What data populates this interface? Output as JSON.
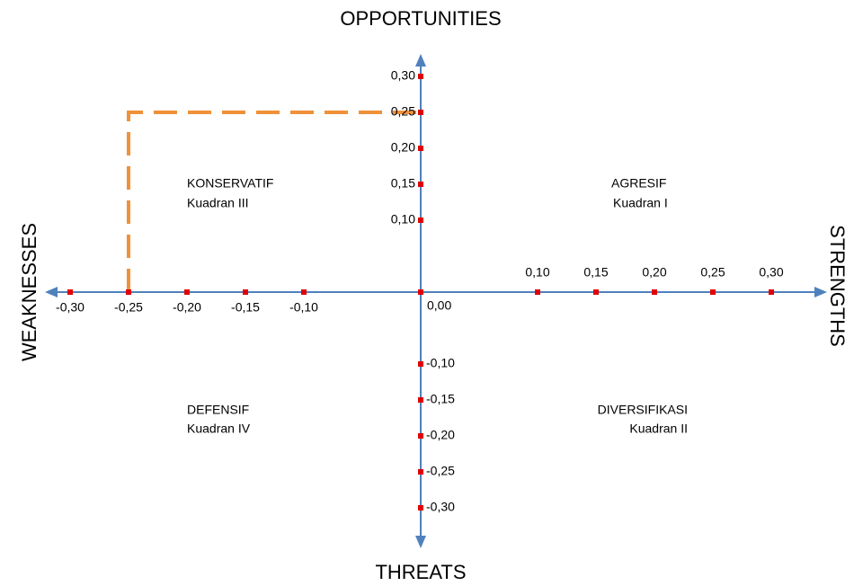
{
  "chart_data": {
    "type": "scatter",
    "axis_labels": {
      "top": "OPPORTUNITIES",
      "bottom": "THREATS",
      "left": "WEAKNESSES",
      "right": "STRENGTHS"
    },
    "quadrants": [
      {
        "name": "AGRESIF",
        "label": "Kuadran I"
      },
      {
        "name": "DIVERSIFIKASI",
        "label": "Kuadran II"
      },
      {
        "name": "KONSERVATIF",
        "label": "Kuadran III"
      },
      {
        "name": "DEFENSIF",
        "label": "Kuadran IV"
      }
    ],
    "x": [
      -0.25
    ],
    "values": [
      0.25
    ],
    "color": "#f0913a",
    "xlim": [
      -0.33,
      0.33
    ],
    "ylim": [
      -0.33,
      0.33
    ],
    "xticks": [
      {
        "value": -0.3,
        "label": "-0,30"
      },
      {
        "value": -0.25,
        "label": "-0,25"
      },
      {
        "value": -0.2,
        "label": "-0,20"
      },
      {
        "value": -0.15,
        "label": "-0,15"
      },
      {
        "value": -0.1,
        "label": "-0,10"
      },
      {
        "value": 0,
        "label": "0,00"
      },
      {
        "value": 0.1,
        "label": "0,10"
      },
      {
        "value": 0.15,
        "label": "0,15"
      },
      {
        "value": 0.2,
        "label": "0,20"
      },
      {
        "value": 0.25,
        "label": "0,25"
      },
      {
        "value": 0.3,
        "label": "0,30"
      }
    ],
    "yticks": [
      {
        "value": 0.3,
        "label": "0,30"
      },
      {
        "value": 0.25,
        "label": "0,25"
      },
      {
        "value": 0.2,
        "label": "0,20"
      },
      {
        "value": 0.15,
        "label": "0,15"
      },
      {
        "value": 0.1,
        "label": "0,10"
      },
      {
        "value": -0.1,
        "label": "-0,10"
      },
      {
        "value": -0.15,
        "label": "-0,15"
      },
      {
        "value": -0.2,
        "label": "-0,20"
      },
      {
        "value": -0.25,
        "label": "-0,25"
      },
      {
        "value": -0.3,
        "label": "-0,30"
      }
    ],
    "tick_color": "#e00000",
    "axis_color": "#4f81bd"
  }
}
